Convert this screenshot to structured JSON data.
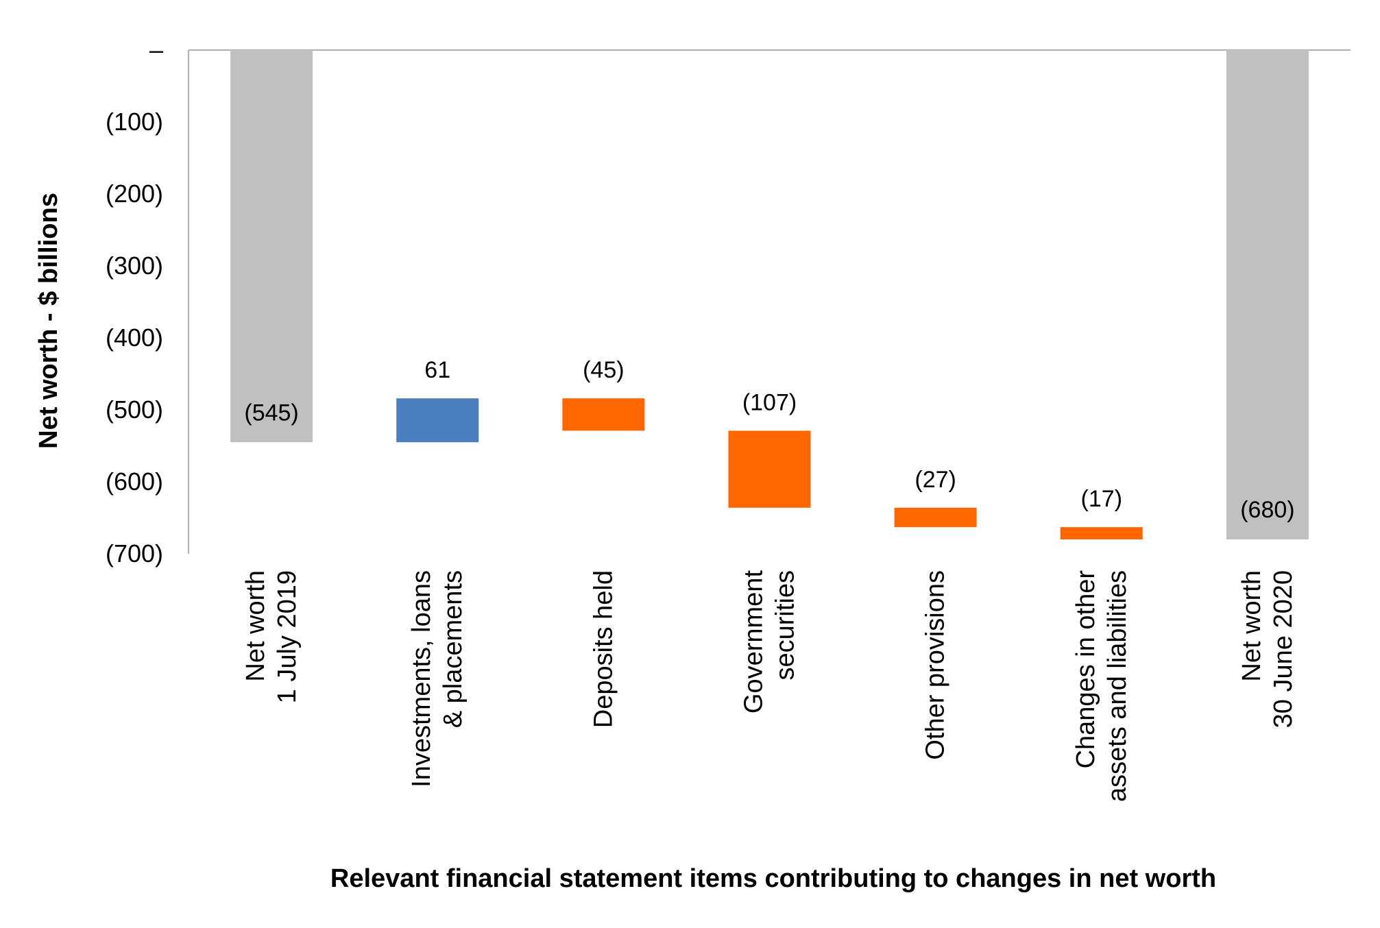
{
  "chart_data": {
    "type": "waterfall",
    "title": "",
    "xlabel": "Relevant financial statement items contributing to changes in net worth",
    "ylabel": "Net worth - $ billions",
    "ylim": [
      -700,
      0
    ],
    "yticks": [
      0,
      -100,
      -200,
      -300,
      -400,
      -500,
      -600,
      -700
    ],
    "ytick_labels": [
      "–",
      "(100)",
      "(200)",
      "(300)",
      "(400)",
      "(500)",
      "(600)",
      "(700)"
    ],
    "grid": false,
    "legend": "none",
    "categories": [
      [
        "Net worth",
        "1 July 2019"
      ],
      [
        "Investments, loans",
        "& placements"
      ],
      [
        "Deposits held"
      ],
      [
        "Government",
        "securities"
      ],
      [
        "Other provisions"
      ],
      [
        "Changes in other",
        "assets and liabilities"
      ],
      [
        "Net worth",
        "30 June 2020"
      ]
    ],
    "bars": [
      {
        "kind": "total",
        "start": 0,
        "end": -545,
        "value": -545,
        "label": "(545)"
      },
      {
        "kind": "increase",
        "start": -545,
        "end": -484,
        "value": 61,
        "label": "61"
      },
      {
        "kind": "decrease",
        "start": -484,
        "end": -529,
        "value": -45,
        "label": "(45)"
      },
      {
        "kind": "decrease",
        "start": -529,
        "end": -636,
        "value": -107,
        "label": "(107)"
      },
      {
        "kind": "decrease",
        "start": -636,
        "end": -663,
        "value": -27,
        "label": "(27)"
      },
      {
        "kind": "decrease",
        "start": -663,
        "end": -680,
        "value": -17,
        "label": "(17)"
      },
      {
        "kind": "total",
        "start": 0,
        "end": -680,
        "value": -680,
        "label": "(680)"
      }
    ],
    "colors": {
      "total": "#c0c0c0",
      "increase": "#4a7ebf",
      "decrease": "#ff6600",
      "axis": "#b0b0b0"
    }
  }
}
